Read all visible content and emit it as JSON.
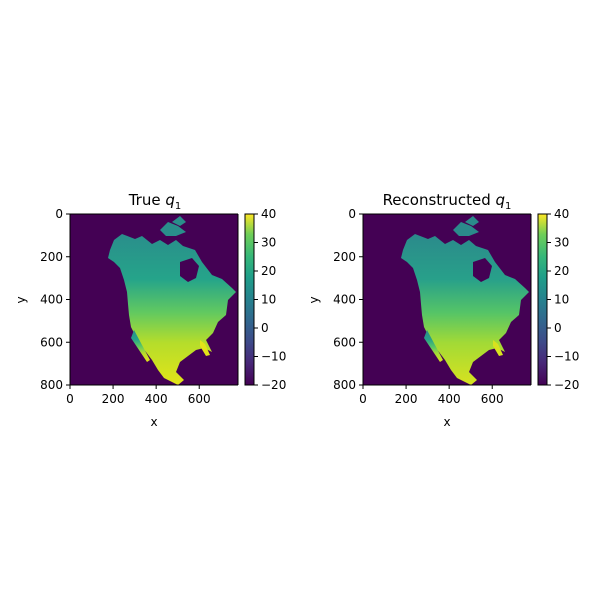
{
  "chart_data": [
    {
      "type": "heatmap",
      "title": "True",
      "title_symbol": "q",
      "title_subscript": "1",
      "xlabel": "x",
      "ylabel": "y",
      "x_ticks": [
        "0",
        "200",
        "400",
        "600"
      ],
      "x_tick_values": [
        0,
        200,
        400,
        600
      ],
      "y_ticks": [
        "0",
        "200",
        "400",
        "600",
        "800"
      ],
      "y_tick_values": [
        0,
        200,
        400,
        600,
        800
      ],
      "xlim": [
        0,
        780
      ],
      "ylim": [
        800,
        0
      ],
      "colorbar": {
        "ticks": [
          "40",
          "30",
          "20",
          "10",
          "0",
          "−10",
          "−20"
        ],
        "tick_values": [
          40,
          30,
          20,
          10,
          0,
          -10,
          -20
        ],
        "range": [
          -20,
          40
        ],
        "colormap": "viridis"
      },
      "background_value": -20,
      "description_values": {
        "north_value": 18,
        "south_value": 38
      }
    },
    {
      "type": "heatmap",
      "title": "Reconstructed",
      "title_symbol": "q",
      "title_subscript": "1",
      "xlabel": "x",
      "ylabel": "y",
      "x_ticks": [
        "0",
        "200",
        "400",
        "600"
      ],
      "x_tick_values": [
        0,
        200,
        400,
        600
      ],
      "y_ticks": [
        "0",
        "200",
        "400",
        "600",
        "800"
      ],
      "y_tick_values": [
        0,
        200,
        400,
        600,
        800
      ],
      "xlim": [
        0,
        780
      ],
      "ylim": [
        800,
        0
      ],
      "colorbar": {
        "ticks": [
          "40",
          "30",
          "20",
          "10",
          "0",
          "−10",
          "−20"
        ],
        "tick_values": [
          40,
          30,
          20,
          10,
          0,
          -10,
          -20
        ],
        "range": [
          -20,
          40
        ],
        "colormap": "viridis"
      },
      "background_value": -20,
      "description_values": {
        "north_value": 16,
        "south_value": 36
      }
    }
  ]
}
